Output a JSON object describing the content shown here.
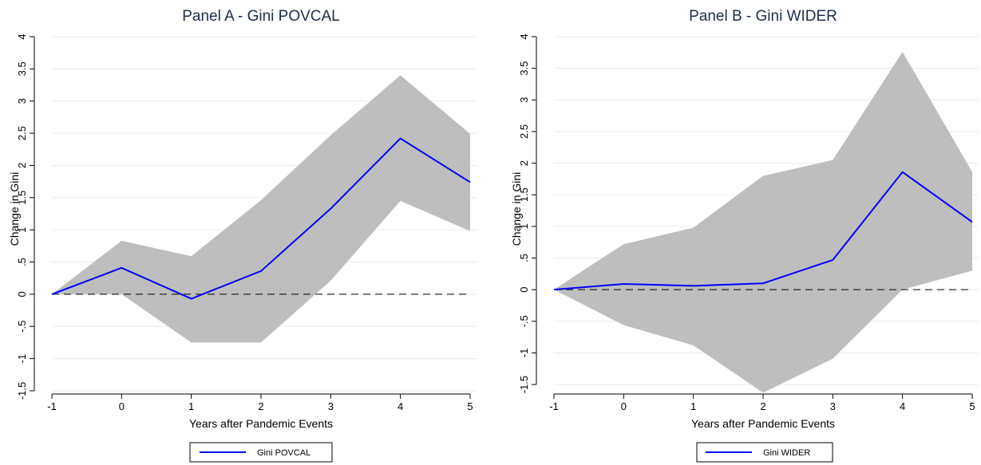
{
  "chart_data": [
    {
      "type": "line",
      "title": "Panel A - Gini POVCAL",
      "xlabel": "Years after Pandemic Events",
      "ylabel": "Change in Gini",
      "x": [
        -1,
        0,
        1,
        2,
        3,
        4,
        5
      ],
      "x_ticks": [
        "-1",
        "0",
        "1",
        "2",
        "3",
        "4",
        "5"
      ],
      "y_ticks": [
        "4",
        "3.5",
        "3",
        "2.5",
        "2",
        "1.5",
        "1",
        ".5",
        "0",
        "-.5",
        "-1",
        "-1.5"
      ],
      "y_tick_values": [
        4,
        3.5,
        3,
        2.5,
        2,
        1.5,
        1,
        0.5,
        0,
        -0.5,
        -1,
        -1.5
      ],
      "ylim": [
        -1.55,
        4.0
      ],
      "xlim": [
        -1,
        5
      ],
      "series": [
        {
          "name": "Gini POVCAL",
          "values": [
            0,
            0.41,
            -0.07,
            0.36,
            1.33,
            2.42,
            1.74
          ],
          "color": "#0000ff"
        }
      ],
      "confidence_band": {
        "upper": [
          0,
          0.83,
          0.59,
          1.46,
          2.47,
          3.4,
          2.49
        ],
        "lower": [
          0,
          0,
          -0.75,
          -0.75,
          0.21,
          1.45,
          0.98
        ],
        "color": "#bebebe"
      },
      "reference_line": {
        "y": 0,
        "style": "dashed"
      },
      "grid": true,
      "legend": {
        "position": "bottom"
      }
    },
    {
      "type": "line",
      "title": "Panel B - Gini WIDER",
      "xlabel": "Years after Pandemic Events",
      "ylabel": "Change in Gini",
      "x": [
        -1,
        0,
        1,
        2,
        3,
        4,
        5
      ],
      "x_ticks": [
        "-1",
        "0",
        "1",
        "2",
        "3",
        "4",
        "5"
      ],
      "y_ticks": [
        "4",
        "3.5",
        "3",
        "2.5",
        "2",
        "1.5",
        "1",
        ".5",
        "0",
        "-.5",
        "-1",
        "-1.5"
      ],
      "y_tick_values": [
        4,
        3.5,
        3,
        2.5,
        2,
        1.5,
        1,
        0.5,
        0,
        -0.5,
        -1,
        -1.5
      ],
      "ylim": [
        -1.65,
        4.0
      ],
      "xlim": [
        -1,
        5
      ],
      "series": [
        {
          "name": "Gini WIDER",
          "values": [
            0,
            0.09,
            0.06,
            0.1,
            0.47,
            1.86,
            1.07
          ],
          "color": "#0000ff"
        }
      ],
      "confidence_band": {
        "upper": [
          0,
          0.72,
          0.98,
          1.8,
          2.05,
          3.76,
          1.86
        ],
        "lower": [
          0,
          -0.56,
          -0.88,
          -1.63,
          -1.09,
          0,
          0.3
        ],
        "color": "#bebebe"
      },
      "reference_line": {
        "y": 0,
        "style": "dashed"
      },
      "grid": true,
      "legend": {
        "position": "bottom"
      }
    }
  ]
}
